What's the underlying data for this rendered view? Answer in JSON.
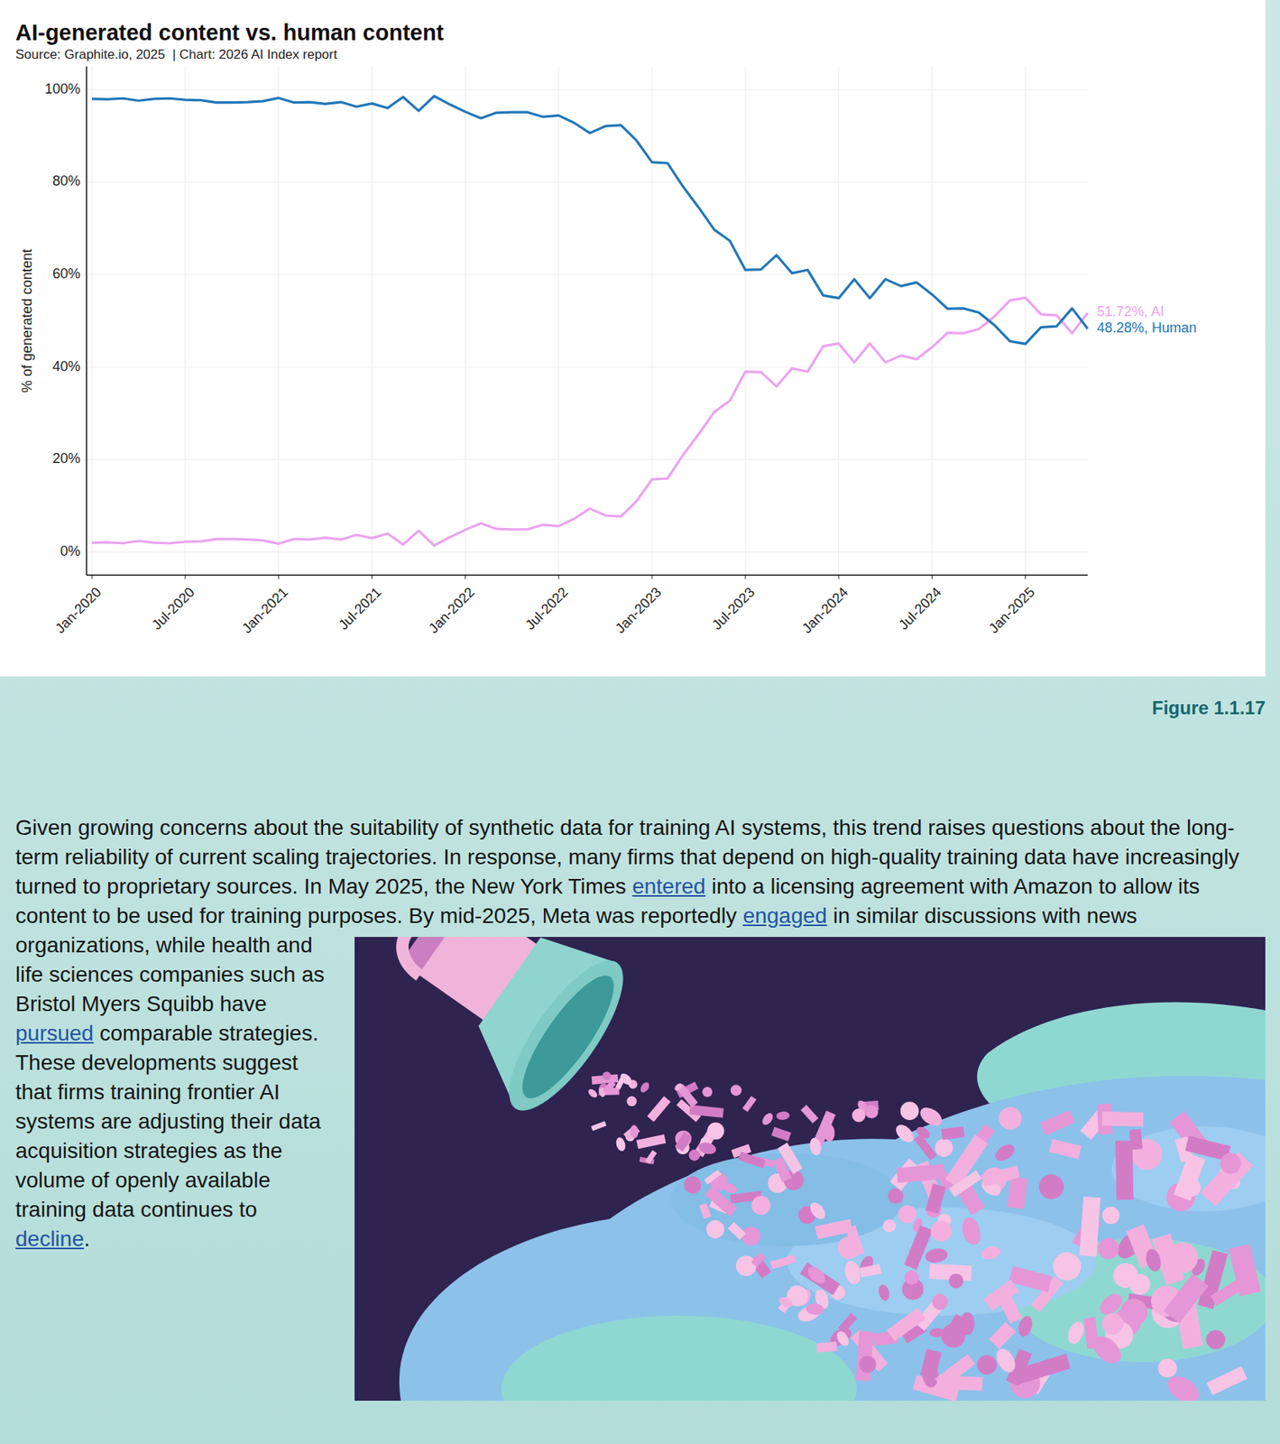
{
  "chart_data": {
    "type": "line",
    "title": "AI-generated content vs. human content",
    "subtitle": "Source: Graphite.io, 2025  | Chart: 2026 AI Index report",
    "y_label": "% of generated content",
    "x": [
      "2020-01",
      "2020-02",
      "2020-03",
      "2020-04",
      "2020-05",
      "2020-06",
      "2020-07",
      "2020-08",
      "2020-09",
      "2020-10",
      "2020-11",
      "2020-12",
      "2021-01",
      "2021-02",
      "2021-03",
      "2021-04",
      "2021-05",
      "2021-06",
      "2021-07",
      "2021-08",
      "2021-09",
      "2021-10",
      "2021-11",
      "2021-12",
      "2022-01",
      "2022-02",
      "2022-03",
      "2022-04",
      "2022-05",
      "2022-06",
      "2022-07",
      "2022-08",
      "2022-09",
      "2022-10",
      "2022-11",
      "2022-12",
      "2023-01",
      "2023-02",
      "2023-03",
      "2023-04",
      "2023-05",
      "2023-06",
      "2023-07",
      "2023-08",
      "2023-09",
      "2023-10",
      "2023-11",
      "2023-12",
      "2024-01",
      "2024-02",
      "2024-03",
      "2024-04",
      "2024-05",
      "2024-06",
      "2024-07",
      "2024-08",
      "2024-09",
      "2024-10",
      "2024-11",
      "2024-12",
      "2025-01",
      "2025-02",
      "2025-03",
      "2025-04",
      "2025-05"
    ],
    "series": [
      {
        "name": "AI",
        "color": "#eaa4f0",
        "values": [
          2,
          2.1,
          1.9,
          2.4,
          2,
          1.9,
          2.2,
          2.3,
          2.8,
          2.8,
          2.7,
          2.5,
          1.8,
          2.8,
          2.7,
          3.1,
          2.7,
          3.7,
          3,
          4,
          1.6,
          4.6,
          1.4,
          3.2,
          4.8,
          6.2,
          5,
          4.9,
          4.9,
          5.9,
          5.6,
          7.2,
          9.4,
          7.9,
          7.7,
          11,
          15.7,
          15.9,
          21,
          25.5,
          30.3,
          32.7,
          39,
          38.9,
          35.8,
          39.7,
          39,
          44.5,
          45.1,
          41,
          45.1,
          41,
          42.5,
          41.7,
          44.3,
          47.4,
          47.3,
          48.2,
          50.9,
          54.4,
          55,
          51.4,
          51.2,
          47.3,
          51.72
        ]
      },
      {
        "name": "Human",
        "color": "#2277b8",
        "values": [
          98,
          97.9,
          98.1,
          97.6,
          98,
          98.1,
          97.8,
          97.7,
          97.2,
          97.2,
          97.3,
          97.5,
          98.2,
          97.2,
          97.3,
          96.9,
          97.3,
          96.3,
          97,
          96,
          98.4,
          95.4,
          98.6,
          96.8,
          95.2,
          93.8,
          95,
          95.1,
          95.1,
          94.1,
          94.4,
          92.8,
          90.6,
          92.1,
          92.3,
          89,
          84.3,
          84.1,
          79,
          74.5,
          69.7,
          67.3,
          61,
          61.1,
          64.2,
          60.3,
          61,
          55.5,
          54.9,
          59,
          54.9,
          59,
          57.5,
          58.3,
          55.7,
          52.6,
          52.7,
          51.8,
          49.1,
          45.6,
          45,
          48.6,
          48.8,
          52.7,
          48.28
        ]
      }
    ],
    "annotations": [
      "51.72%, AI",
      "48.28%, Human"
    ],
    "xlim": [
      "2020-01",
      "2025-05"
    ],
    "xticks": [
      {
        "value": "2020-01",
        "label": "Jan-2020"
      },
      {
        "value": "2020-07",
        "label": "Jul-2020"
      },
      {
        "value": "2021-01",
        "label": "Jan-2021"
      },
      {
        "value": "2021-07",
        "label": "Jul-2021"
      },
      {
        "value": "2022-01",
        "label": "Jan-2022"
      },
      {
        "value": "2022-07",
        "label": "Jul-2022"
      },
      {
        "value": "2023-01",
        "label": "Jan-2023"
      },
      {
        "value": "2023-07",
        "label": "Jul-2023"
      },
      {
        "value": "2024-01",
        "label": "Jan-2024"
      },
      {
        "value": "2024-07",
        "label": "Jul-2024"
      },
      {
        "value": "2025-01",
        "label": "Jan-2025"
      }
    ],
    "ylim": [
      -5,
      105
    ],
    "yticks": [
      {
        "value": 0,
        "label": "0%"
      },
      {
        "value": 20,
        "label": "20%"
      },
      {
        "value": 40,
        "label": "40%"
      },
      {
        "value": 60,
        "label": "60%"
      },
      {
        "value": 80,
        "label": "80%"
      },
      {
        "value": 100,
        "label": "100%"
      }
    ],
    "grid": true
  },
  "figure_label": "Figure 1.1.17",
  "paragraph": [
    {
      "text": "Given growing concerns about the suitability of synthetic data for training AI systems, this trend raises questions about the long-term reliability of current scaling trajectories. In response, many firms that depend on high-quality training data have increasingly turned to proprietary sources. In May 2025, the New York Times ",
      "link": false
    },
    {
      "text": "entered",
      "link": true
    },
    {
      "text": " into a licensing agreement with Amazon to allow its content to be used for training purposes. By mid-2025, Meta was reportedly ",
      "link": false
    },
    {
      "text": "engaged",
      "link": true
    },
    {
      "text": " in similar discussions with news organizations, while health and life sciences companies such as Bristol Myers Squibb have ",
      "link": false
    },
    {
      "text": "pursued",
      "link": true
    },
    {
      "text": " comparable strategies. These developments suggest that firms training frontier AI systems are adjusting their data acquisition strategies as the volume of openly available training data continues to ",
      "link": false
    },
    {
      "text": "decline",
      "link": true
    },
    {
      "text": ".",
      "link": false
    }
  ]
}
